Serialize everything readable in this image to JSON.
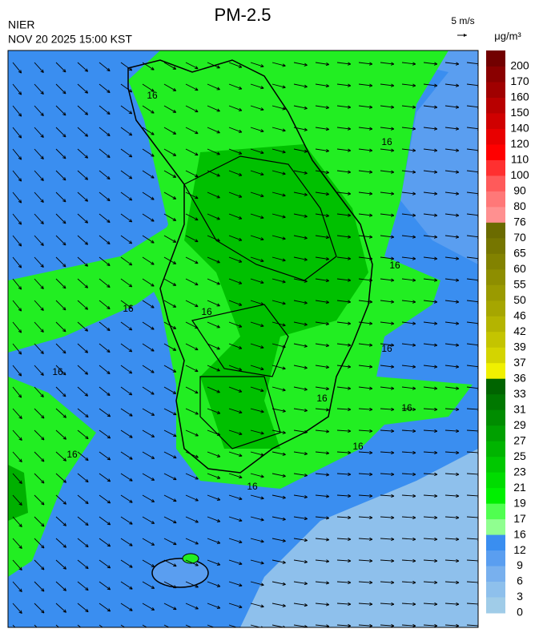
{
  "header": {
    "title": "PM-2.5",
    "agency": "NIER",
    "timestamp": "NOV 20 2025 15:00 KST"
  },
  "wind_legend": {
    "label": "5 m/s"
  },
  "colorbar": {
    "unit": "μg/m³",
    "labels": [
      200,
      170,
      160,
      150,
      140,
      120,
      110,
      100,
      90,
      80,
      76,
      70,
      65,
      60,
      55,
      50,
      46,
      42,
      39,
      37,
      36,
      33,
      31,
      29,
      27,
      25,
      23,
      21,
      19,
      17,
      16,
      12,
      9,
      6,
      3,
      0
    ],
    "colors": [
      "#720000",
      "#8a0000",
      "#a00000",
      "#b80000",
      "#d00000",
      "#e80000",
      "#ff0000",
      "#ff3030",
      "#ff5a5a",
      "#ff7878",
      "#ff9090",
      "#6b6b00",
      "#767600",
      "#828200",
      "#8e8e00",
      "#9a9a00",
      "#a6a600",
      "#b4b400",
      "#c4c400",
      "#d4d400",
      "#f0f000",
      "#006400",
      "#007800",
      "#008c00",
      "#00a000",
      "#00b400",
      "#00c800",
      "#00dc00",
      "#00f000",
      "#50ff50",
      "#90ff90",
      "#3a8ef0",
      "#5a9ef0",
      "#78b0ee",
      "#8ec0ec",
      "#a0cce8"
    ]
  },
  "map": {
    "contour_labels": [
      "16",
      "16",
      "16",
      "16",
      "16",
      "16",
      "16",
      "16",
      "16",
      "16",
      "16",
      "16"
    ]
  }
}
